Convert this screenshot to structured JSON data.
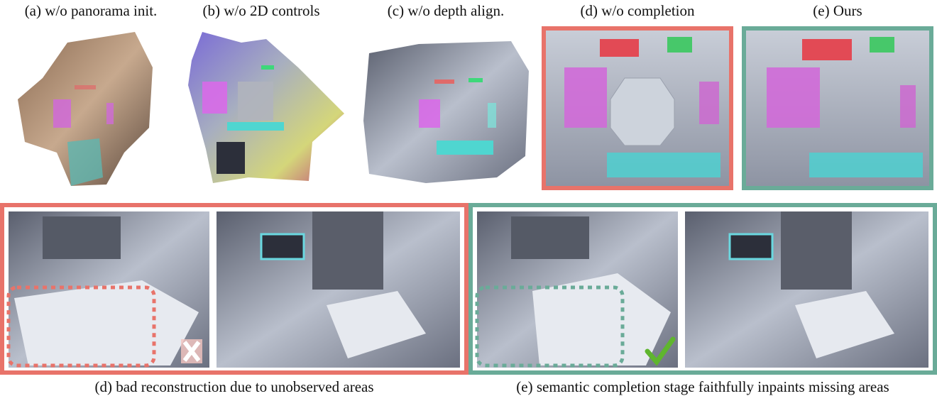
{
  "figure": {
    "top_captions": [
      "(a) w/o panorama init.",
      "(b) w/o 2D controls",
      "(c) w/o depth align.",
      "(d) w/o completion",
      "(e) Ours"
    ],
    "bottom_captions": [
      "(d) bad reconstruction due to unobserved areas",
      "(e) semantic completion stage faithfully inpaints missing areas"
    ]
  }
}
